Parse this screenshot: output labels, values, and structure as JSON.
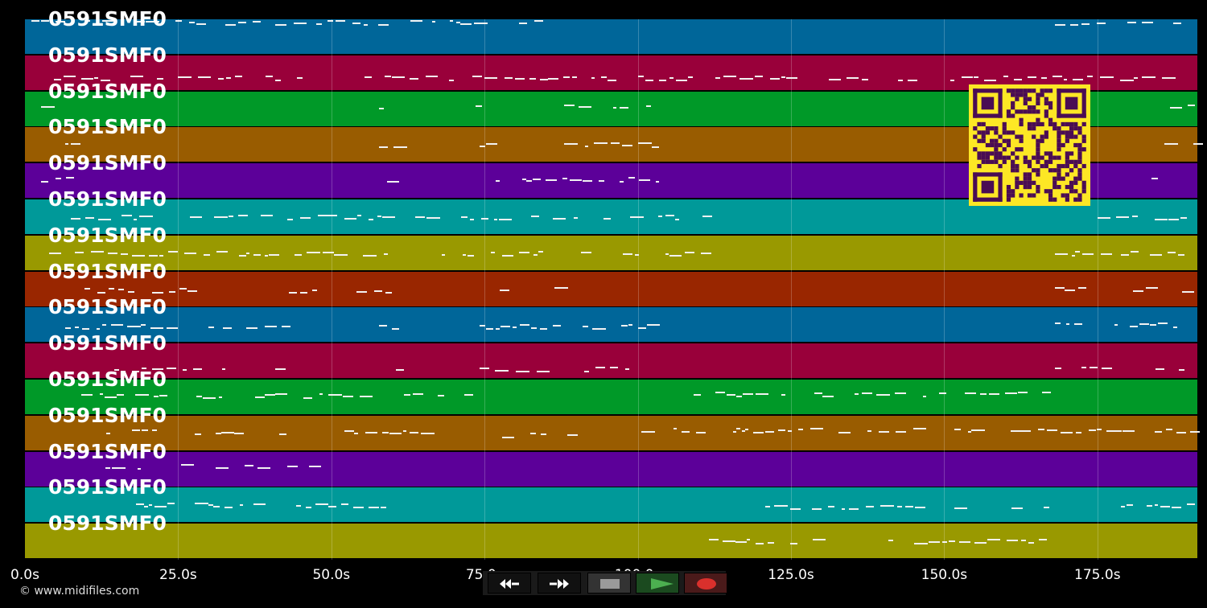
{
  "track_label": "0591SMF0",
  "tracks": [
    {
      "color": "#006699"
    },
    {
      "color": "#99003a"
    },
    {
      "color": "#009928"
    },
    {
      "color": "#995c00"
    },
    {
      "color": "#5c0099"
    },
    {
      "color": "#009999"
    },
    {
      "color": "#999900"
    },
    {
      "color": "#992600"
    },
    {
      "color": "#006699"
    },
    {
      "color": "#99003a"
    },
    {
      "color": "#009928"
    },
    {
      "color": "#995c00"
    },
    {
      "color": "#5c0099"
    },
    {
      "color": "#009999"
    },
    {
      "color": "#999900"
    }
  ],
  "time_axis": {
    "ticks": [
      "0.0s",
      "25.0s",
      "50.0s",
      "75.0s",
      "100.0s",
      "125.0s",
      "150.0s",
      "175.0s"
    ]
  },
  "copyright": "© www.midifiles.com",
  "controls": {
    "rewind": "rewind-icon",
    "fast_forward": "fast-forward-icon",
    "stop": "stop-icon",
    "play": "play-icon",
    "record": "record-icon"
  },
  "qr_code": "qr-code"
}
